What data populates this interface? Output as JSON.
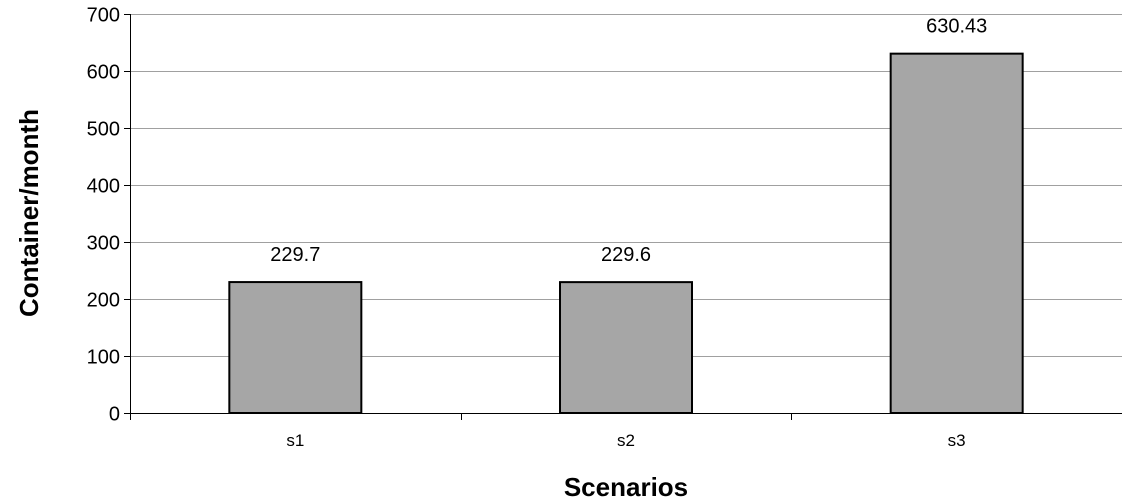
{
  "chart_data": {
    "type": "bar",
    "title": "",
    "xlabel": "Scenarios",
    "ylabel": "Container/month",
    "categories": [
      "s1",
      "s2",
      "s3"
    ],
    "values": [
      229.7,
      229.6,
      630.43
    ],
    "data_labels": [
      "229.7",
      "229.6",
      "630.43"
    ],
    "ylim": [
      0,
      700
    ],
    "yticks": [
      0,
      100,
      200,
      300,
      400,
      500,
      600,
      700
    ],
    "ytick_labels": [
      "0",
      "100",
      "200",
      "300",
      "400",
      "500",
      "600",
      "700"
    ],
    "grid": "horizontal",
    "legend": "none",
    "colors": {
      "bar_fill": "#a6a6a6",
      "bar_stroke": "#000000",
      "gridline": "#a0a0a0",
      "axis": "#000000"
    }
  }
}
